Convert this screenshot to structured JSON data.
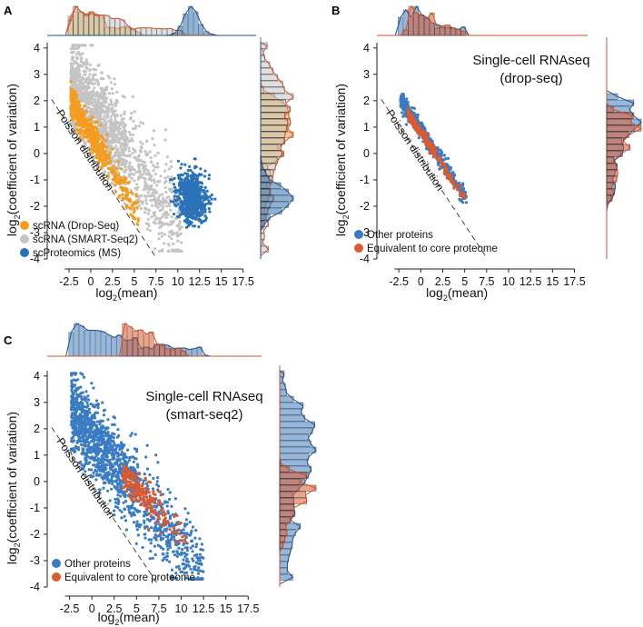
{
  "colors": {
    "dropseq": "#f39c1f",
    "smartseq": "#c4c4c4",
    "proteomics": "#2b72b8",
    "other": "#3a7cc4",
    "core": "#e0592a",
    "axis": "#222222"
  },
  "chart_data": [
    {
      "panel": "A",
      "type": "scatter",
      "xlabel_base": "log",
      "xlabel_sub": "2",
      "xlabel_rest": "(mean)",
      "ylabel_base": "log",
      "ylabel_sub": "2",
      "ylabel_rest": "(coefficient of variation)",
      "xlim": [
        -5,
        19
      ],
      "ylim": [
        -4,
        4.2
      ],
      "x_ticks": [
        -2.5,
        0,
        2.5,
        5,
        7.5,
        10,
        12.5,
        15,
        17.5
      ],
      "x_tick_labels": [
        "-2.5",
        "0",
        "2.5",
        "5",
        "7.5",
        "10",
        "12.5",
        "15",
        "17.5"
      ],
      "y_ticks": [
        -4,
        -3,
        -2,
        -1,
        0,
        1,
        2,
        3,
        4
      ],
      "y_tick_labels": [
        "-4",
        "-3",
        "-2",
        "-1",
        "0",
        "1",
        "2",
        "3",
        "4"
      ],
      "reference_line": {
        "label": "Poisson distribution",
        "slope": -0.5,
        "intercept": -0.2
      },
      "legend": [
        "scRNA (Drop-Seq)",
        "scRNA (SMART-Seq2)",
        "scProteomics (MS)"
      ],
      "series": [
        {
          "name": "scRNA (Drop-Seq)",
          "color_key": "dropseq",
          "x_range": [
            -2.3,
            5.5
          ],
          "trend_slope": -0.55,
          "trend_intercept": 0.75,
          "spread": 0.3,
          "x_mode": -1.8,
          "y_mode": 1.2
        },
        {
          "name": "scRNA (SMART-Seq2)",
          "color_key": "smartseq",
          "x_range": [
            -2.3,
            10.5
          ],
          "trend_slope": -0.43,
          "trend_intercept": 1.7,
          "spread": 0.9,
          "x_mode": 1.0,
          "y_mode": 0.9
        },
        {
          "name": "scProteomics (MS)",
          "color_key": "proteomics",
          "x_range": [
            9,
            14.5
          ],
          "trend_slope": -0.05,
          "trend_intercept": -1.1,
          "spread": 0.45,
          "x_mode": 11.3,
          "y_mode": -1.7
        }
      ]
    },
    {
      "panel": "B",
      "type": "scatter",
      "title_line1": "Single-cell RNAseq",
      "title_line2": "(drop-seq)",
      "xlabel_base": "log",
      "xlabel_sub": "2",
      "xlabel_rest": "(mean)",
      "ylabel_base": "log",
      "ylabel_sub": "2",
      "ylabel_rest": "(coefficient of variation)",
      "xlim": [
        -5,
        19
      ],
      "ylim": [
        -4,
        4.2
      ],
      "x_ticks": [
        -2.5,
        0,
        2.5,
        5,
        7.5,
        10,
        12.5,
        15,
        17.5
      ],
      "x_tick_labels": [
        "-2.5",
        "0",
        "2.5",
        "5",
        "7.5",
        "10",
        "12.5",
        "15",
        "17.5"
      ],
      "y_ticks": [
        -4,
        -3,
        -2,
        -1,
        0,
        1,
        2,
        3,
        4
      ],
      "y_tick_labels": [
        "-4",
        "-3",
        "-2",
        "-1",
        "0",
        "1",
        "2",
        "3",
        "4"
      ],
      "reference_line": {
        "label": "Poisson distribution",
        "slope": -0.5,
        "intercept": -0.2
      },
      "legend": [
        "Other proteins",
        "Equivalent to core proteome"
      ],
      "series": [
        {
          "name": "Other proteins",
          "color_key": "other",
          "x_range": [
            -2.3,
            5.2
          ],
          "trend_slope": -0.5,
          "trend_intercept": 0.9,
          "spread": 0.16,
          "x_mode": -0.5,
          "y_mode": 1.0
        },
        {
          "name": "Equivalent to core proteome",
          "color_key": "core",
          "x_range": [
            -1.5,
            5.0
          ],
          "trend_slope": -0.5,
          "trend_intercept": 0.8,
          "spread": 0.1,
          "x_mode": 1.5,
          "y_mode": 0.0
        }
      ]
    },
    {
      "panel": "C",
      "type": "scatter",
      "title_line1": "Single-cell RNAseq",
      "title_line2": "(smart-seq2)",
      "xlabel_base": "log",
      "xlabel_sub": "2",
      "xlabel_rest": "(mean)",
      "ylabel_base": "log",
      "ylabel_sub": "2",
      "ylabel_rest": "(coefficient of variation)",
      "xlim": [
        -5,
        19
      ],
      "ylim": [
        -4,
        4.2
      ],
      "x_ticks": [
        -2.5,
        0,
        2.5,
        5,
        7.5,
        10,
        12.5,
        15,
        17.5
      ],
      "x_tick_labels": [
        "-2.5",
        "0",
        "2.5",
        "5",
        "7.5",
        "10",
        "12.5",
        "15",
        "17.5"
      ],
      "y_ticks": [
        -4,
        -3,
        -2,
        -1,
        0,
        1,
        2,
        3,
        4
      ],
      "y_tick_labels": [
        "-4",
        "-3",
        "-2",
        "-1",
        "0",
        "1",
        "2",
        "3",
        "4"
      ],
      "reference_line": {
        "label": "Poisson distribution",
        "slope": -0.5,
        "intercept": -0.2
      },
      "legend": [
        "Other proteins",
        "Equivalent to core proteome"
      ],
      "series": [
        {
          "name": "Other proteins",
          "color_key": "other",
          "x_range": [
            -2.3,
            12.5
          ],
          "trend_slope": -0.42,
          "trend_intercept": 1.7,
          "spread": 0.75,
          "x_mode": 1.0,
          "y_mode": 1.3
        },
        {
          "name": "Equivalent to core proteome",
          "color_key": "core",
          "x_range": [
            3.5,
            10.5
          ],
          "trend_slope": -0.35,
          "trend_intercept": 1.5,
          "spread": 0.3,
          "x_mode": 5.0,
          "y_mode": -0.3
        }
      ]
    }
  ]
}
